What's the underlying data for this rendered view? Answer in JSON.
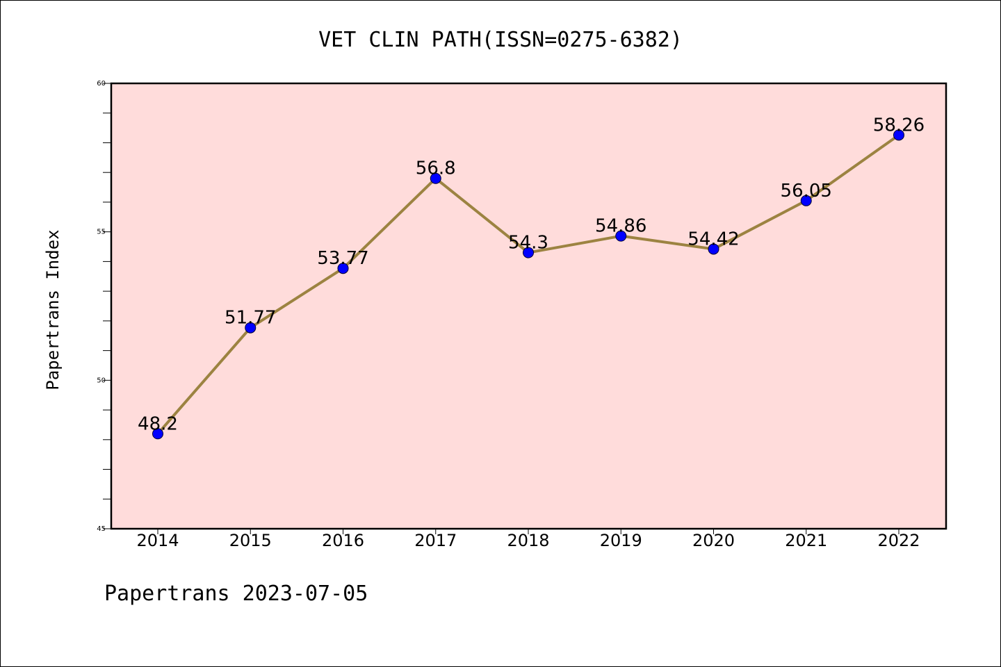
{
  "chart_data": {
    "type": "line",
    "title": "VET CLIN PATH(ISSN=0275-6382)",
    "xlabel": "",
    "ylabel": "Papertrans Index",
    "categories": [
      "2014",
      "2015",
      "2016",
      "2017",
      "2018",
      "2019",
      "2020",
      "2021",
      "2022"
    ],
    "values": [
      48.2,
      51.77,
      53.77,
      56.8,
      54.3,
      54.86,
      54.42,
      56.05,
      58.26
    ],
    "data_labels": [
      "48.2",
      "51.77",
      "53.77",
      "56.8",
      "54.3",
      "54.86",
      "54.42",
      "56.05",
      "58.26"
    ],
    "ylim": [
      45,
      60
    ],
    "yticks": [
      "45",
      "50",
      "55",
      "60"
    ],
    "grid": false,
    "legend": "none",
    "colors": {
      "plot_background": "#FFDCDB",
      "line": "#9C8341",
      "marker": "#0000FF"
    }
  },
  "footer": {
    "text": "Papertrans 2023-07-05"
  }
}
